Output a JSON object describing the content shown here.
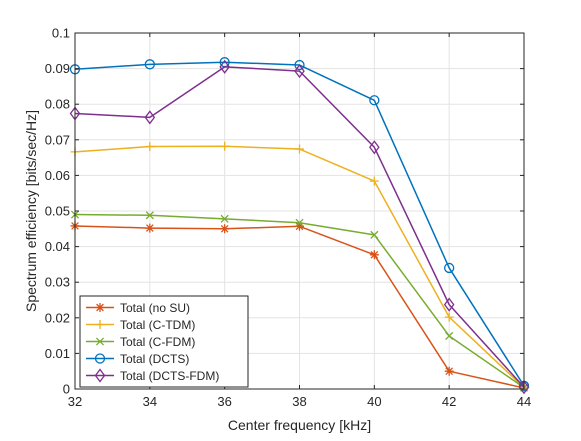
{
  "chart_data": {
    "type": "line",
    "title": "",
    "xlabel": "Center frequency [kHz]",
    "ylabel": "Spectrum efficiency [bits/sec/Hz]",
    "xlim": [
      32,
      44
    ],
    "ylim": [
      0,
      0.1
    ],
    "x": [
      32,
      34,
      36,
      38,
      40,
      42,
      44
    ],
    "xticks": [
      "32",
      "34",
      "36",
      "38",
      "40",
      "42",
      "44"
    ],
    "yticks": [
      "0",
      "0.01",
      "0.02",
      "0.03",
      "0.04",
      "0.05",
      "0.06",
      "0.07",
      "0.08",
      "0.09",
      "0.1"
    ],
    "grid": true,
    "legend_position": "bottom-left",
    "series": [
      {
        "name": "Total (no SU)",
        "color": "#D95319",
        "marker": "asterisk",
        "values": [
          0.0458,
          0.0452,
          0.045,
          0.0457,
          0.0377,
          0.005,
          0.0003
        ]
      },
      {
        "name": "Total (C-TDM)",
        "color": "#EDB120",
        "marker": "plus",
        "values": [
          0.0666,
          0.0681,
          0.0682,
          0.0674,
          0.0584,
          0.0202,
          0.0004
        ]
      },
      {
        "name": "Total (C-FDM)",
        "color": "#77AC30",
        "marker": "cross",
        "values": [
          0.049,
          0.0488,
          0.0478,
          0.0467,
          0.0433,
          0.0149,
          0.0004
        ]
      },
      {
        "name": "Total (DCTS)",
        "color": "#0072BD",
        "marker": "circle",
        "values": [
          0.0898,
          0.0912,
          0.0918,
          0.091,
          0.0811,
          0.034,
          0.0009
        ]
      },
      {
        "name": "Total (DCTS-FDM)",
        "color": "#7E2F8E",
        "marker": "diamond",
        "values": [
          0.0774,
          0.0763,
          0.0905,
          0.0893,
          0.0679,
          0.0237,
          0.0005
        ]
      }
    ]
  }
}
